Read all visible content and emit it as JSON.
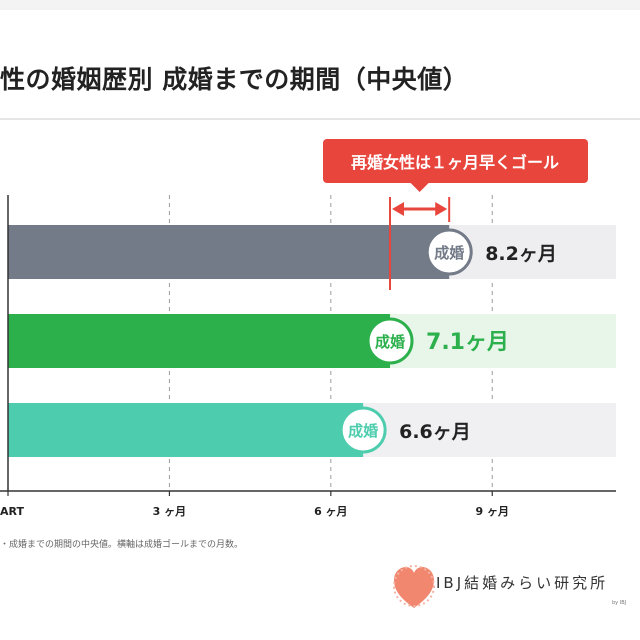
{
  "title": "性の婚姻歴別 成婚までの期間（中央値）",
  "callout": "再婚女性は１ヶ月早くゴール",
  "chart_data": {
    "type": "bar",
    "orientation": "horizontal",
    "xlim": [
      0,
      11.3
    ],
    "x_ticks": [
      {
        "value": 0,
        "label": "ART"
      },
      {
        "value": 3,
        "label": "3 ヶ月"
      },
      {
        "value": 6,
        "label": "6 ヶ月"
      },
      {
        "value": 9,
        "label": "9 ヶ月"
      }
    ],
    "grid": "vertical dashed",
    "bars": [
      {
        "value": 8.2,
        "label": "8.2ヶ月",
        "badge": "成婚",
        "color": "#737a88",
        "track": "#eeeef0",
        "label_color": "#222222"
      },
      {
        "value": 7.1,
        "label": "7.1ヶ月",
        "badge": "成婚",
        "color": "#2bb04b",
        "track": "#e8f6ea",
        "label_color": "#2bb04b"
      },
      {
        "value": 6.6,
        "label": "6.6ヶ月",
        "badge": "成婚",
        "color": "#4ecdae",
        "track": "#f0f0f2",
        "label_color": "#222222"
      }
    ],
    "difference_marker": {
      "from": 7.1,
      "to": 8.2,
      "color": "#e8463d"
    }
  },
  "footnote": "・成婚までの期間の中央値。横軸は成婚ゴールまでの月数。",
  "brand": {
    "name": "IBJ結婚みらい研究所",
    "by": "by IBJ",
    "accent": "#f0876e"
  }
}
